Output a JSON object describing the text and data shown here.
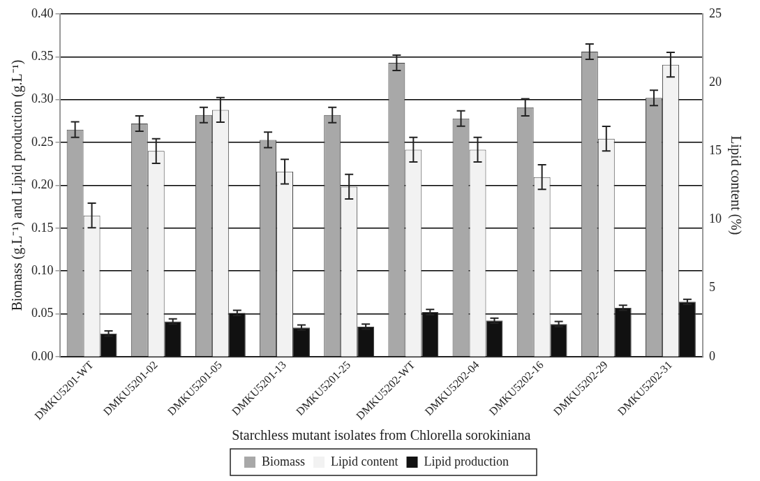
{
  "chart_data": {
    "type": "bar",
    "xlabel": "Starchless mutant isolates from Chlorella sorokiniana",
    "ylabel": "Biomass (g.L⁻¹) and Lipid production (g.L⁻¹)",
    "y2label": "Lipid content (%)",
    "categories": [
      "DMKU5201-WT",
      "DMKU5201-02",
      "DMKU5201-05",
      "DMKU5201-13",
      "DMKU5201-25",
      "DMKU5202-WT",
      "DMKU5202-04",
      "DMKU5202-16",
      "DMKU5202-29",
      "DMKU5202-31"
    ],
    "series": [
      {
        "name": "Biomass",
        "color": "#a8a8a8",
        "values": [
          0.265,
          0.272,
          0.282,
          0.253,
          0.282,
          0.343,
          0.278,
          0.291,
          0.356,
          0.302
        ],
        "errors": [
          0.009,
          0.009,
          0.009,
          0.009,
          0.009,
          0.009,
          0.009,
          0.01,
          0.009,
          0.009
        ]
      },
      {
        "name": "Lipid content",
        "color": "#f2f2f2",
        "axis": "y2",
        "values": [
          10.3,
          15.0,
          18.0,
          13.5,
          12.4,
          15.1,
          15.1,
          13.1,
          15.9,
          21.3
        ],
        "errors": [
          0.9,
          0.9,
          0.9,
          0.9,
          0.9,
          0.9,
          0.9,
          0.9,
          0.9,
          0.9
        ]
      },
      {
        "name": "Lipid production",
        "color": "#111111",
        "values": [
          0.027,
          0.041,
          0.051,
          0.034,
          0.035,
          0.052,
          0.042,
          0.038,
          0.057,
          0.064
        ],
        "errors": [
          0.003,
          0.003,
          0.003,
          0.003,
          0.003,
          0.003,
          0.003,
          0.003,
          0.003,
          0.003
        ]
      }
    ],
    "ylim": [
      0,
      0.4
    ],
    "yticks": [
      {
        "value": 0,
        "label": "0.00"
      },
      {
        "value": 0.05,
        "label": "0.05"
      },
      {
        "value": 0.1,
        "label": "0.10"
      },
      {
        "value": 0.15,
        "label": "0.15"
      },
      {
        "value": 0.2,
        "label": "0.20"
      },
      {
        "value": 0.25,
        "label": "0.25"
      },
      {
        "value": 0.3,
        "label": "0.30"
      },
      {
        "value": 0.35,
        "label": "0.35"
      },
      {
        "value": 0.4,
        "label": "0.40"
      }
    ],
    "y2lim": [
      0,
      25
    ],
    "y2ticks": [
      0,
      5,
      10,
      15,
      20,
      25
    ],
    "grid": "y",
    "legend": "bottom"
  }
}
